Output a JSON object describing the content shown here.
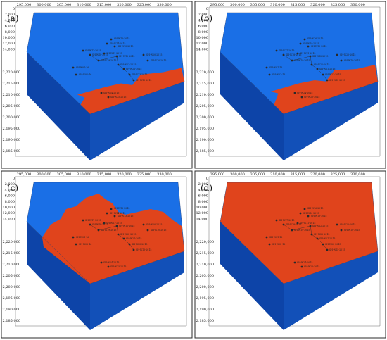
{
  "panels": [
    {
      "label": "(a)",
      "front_cut": 0.25,
      "top_flood": 0.0,
      "mode": "band"
    },
    {
      "label": "(b)",
      "front_cut": 0.4,
      "top_flood": 0.0,
      "mode": "band"
    },
    {
      "label": "(c)",
      "front_cut": 0.0,
      "top_flood": 0.55,
      "mode": "half"
    },
    {
      "label": "(d)",
      "front_cut": 0.0,
      "top_flood": 1.0,
      "mode": "full"
    }
  ],
  "x_ticks": [
    "295,000",
    "300,000",
    "305,000",
    "310,000",
    "315,000",
    "320,000",
    "325,000",
    "330,000"
  ],
  "depth_ticks": [
    "0",
    "2,000",
    "4,000",
    "6,000",
    "8,000",
    "10,000",
    "12,000",
    "14,000"
  ],
  "y_ticks": [
    "2,220,000",
    "2,215,000",
    "2,210,000",
    "2,205,000",
    "2,200,000",
    "2,195,000",
    "2,190,000",
    "2,185,000"
  ],
  "wells": [
    "SH-W16-2015",
    "SH-W14-2015",
    "SH-W13-2015",
    "SH-W17-2015",
    "SH-W18-2015",
    "SH-W11-2015",
    "SH-W12-2015",
    "SH-W19-2015",
    "SH-W20-2015",
    "SH-W10-2015",
    "SH-W01-16",
    "SH-W02-16",
    "SH-W22-2015",
    "SH-W21-2015",
    "SH-W23-2015",
    "SH-W15-2015",
    "SH-W24-2015",
    "SH-W25-2015"
  ],
  "colors": {
    "water": "#1a6fe6",
    "water_dark": "#1250b8",
    "water_side": "#0d44a8",
    "oil": "#e0441c",
    "oil_dark": "#b8360f",
    "frame": "#2b2b2b"
  }
}
